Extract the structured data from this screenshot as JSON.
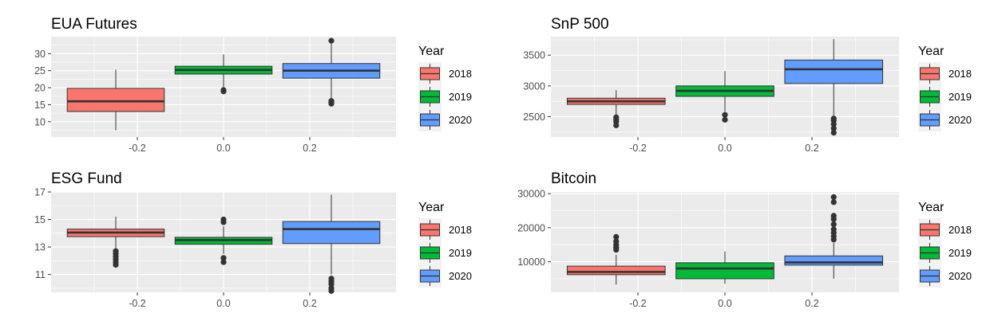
{
  "colors": {
    "2018": "#F8766D",
    "2019": "#00BA38",
    "2020": "#619CFF",
    "panel": "#EBEBEB",
    "grid": "#FFFFFF",
    "median": "#333333"
  },
  "chart_data": [
    {
      "type": "box",
      "title": "EUA Futures",
      "x_ticks": [
        "-0.2",
        "0.0",
        "0.2"
      ],
      "y_ticks": [
        10,
        15,
        20,
        25,
        30
      ],
      "ylim": [
        5.5,
        35
      ],
      "xlim": [
        -0.4,
        0.4
      ],
      "legend": {
        "title": "Year",
        "entries": [
          "2018",
          "2019",
          "2020"
        ],
        "placement": "right"
      },
      "series": [
        {
          "name": "2018",
          "center": -0.25,
          "whisker_low": 7.5,
          "q1": 13,
          "median": 16,
          "q3": 19.8,
          "whisker_high": 25.3,
          "outliers": []
        },
        {
          "name": "2019",
          "center": 0.0,
          "whisker_low": 19.8,
          "q1": 24,
          "median": 25.2,
          "q3": 26.3,
          "whisker_high": 29.8,
          "outliers": [
            18.9,
            19.3
          ]
        },
        {
          "name": "2020",
          "center": 0.25,
          "whisker_low": 16.5,
          "q1": 22.8,
          "median": 25,
          "q3": 27.1,
          "whisker_high": 33,
          "outliers": [
            15.3,
            15.7,
            16.1,
            33.8
          ]
        }
      ]
    },
    {
      "type": "box",
      "title": "SnP 500",
      "x_ticks": [
        "-0.2",
        "0.0",
        "0.2"
      ],
      "y_ticks": [
        2500,
        3000,
        3500
      ],
      "ylim": [
        2170,
        3800
      ],
      "xlim": [
        -0.4,
        0.4
      ],
      "legend": {
        "title": "Year",
        "entries": [
          "2018",
          "2019",
          "2020"
        ],
        "placement": "right"
      },
      "series": [
        {
          "name": "2018",
          "center": -0.25,
          "whisker_low": 2530,
          "q1": 2700,
          "median": 2750,
          "q3": 2800,
          "whisker_high": 2930,
          "outliers": [
            2360,
            2420,
            2460,
            2490
          ]
        },
        {
          "name": "2019",
          "center": 0.0,
          "whisker_low": 2580,
          "q1": 2830,
          "median": 2920,
          "q3": 3000,
          "whisker_high": 3240,
          "outliers": [
            2450,
            2530
          ]
        },
        {
          "name": "2020",
          "center": 0.25,
          "whisker_low": 2500,
          "q1": 3040,
          "median": 3270,
          "q3": 3420,
          "whisker_high": 3760,
          "outliers": [
            2240,
            2310,
            2380,
            2440,
            2470
          ]
        }
      ]
    },
    {
      "type": "box",
      "title": "ESG Fund",
      "x_ticks": [
        "-0.2",
        "0.0",
        "0.2"
      ],
      "y_ticks": [
        11,
        13,
        15,
        17
      ],
      "ylim": [
        9.7,
        17.0
      ],
      "xlim": [
        -0.4,
        0.4
      ],
      "legend": {
        "title": "Year",
        "entries": [
          "2018",
          "2019",
          "2020"
        ],
        "placement": "right"
      },
      "series": [
        {
          "name": "2018",
          "center": -0.25,
          "whisker_low": 12.9,
          "q1": 13.75,
          "median": 14.05,
          "q3": 14.3,
          "whisker_high": 15.2,
          "outliers": [
            11.7,
            11.9,
            12.1,
            12.3,
            12.5,
            12.7
          ]
        },
        {
          "name": "2019",
          "center": 0.0,
          "whisker_low": 12.5,
          "q1": 13.2,
          "median": 13.5,
          "q3": 13.7,
          "whisker_high": 14.5,
          "outliers": [
            11.9,
            12.2,
            14.8,
            15.0
          ]
        },
        {
          "name": "2020",
          "center": 0.25,
          "whisker_low": 11.0,
          "q1": 13.25,
          "median": 14.3,
          "q3": 14.85,
          "whisker_high": 16.8,
          "outliers": [
            9.8,
            10.0,
            10.3,
            10.5,
            10.7
          ]
        }
      ]
    },
    {
      "type": "box",
      "title": "Bitcoin",
      "x_ticks": [
        "-0.2",
        "0.0",
        "0.2"
      ],
      "y_ticks": [
        10000,
        20000,
        30000
      ],
      "ylim": [
        1000,
        30500
      ],
      "xlim": [
        -0.4,
        0.4
      ],
      "legend": {
        "title": "Year",
        "entries": [
          "2018",
          "2019",
          "2020"
        ],
        "placement": "right"
      },
      "series": [
        {
          "name": "2018",
          "center": -0.25,
          "whisker_low": 3300,
          "q1": 6200,
          "median": 7000,
          "q3": 8700,
          "whisker_high": 12000,
          "outliers": [
            13500,
            14200,
            15000,
            16000,
            17300
          ]
        },
        {
          "name": "2019",
          "center": 0.0,
          "whisker_low": 3500,
          "q1": 5000,
          "median": 8000,
          "q3": 9700,
          "whisker_high": 13000,
          "outliers": []
        },
        {
          "name": "2020",
          "center": 0.25,
          "whisker_low": 5000,
          "q1": 9000,
          "median": 9800,
          "q3": 11700,
          "whisker_high": 15500,
          "outliers": [
            16500,
            17500,
            18500,
            19500,
            21000,
            22500,
            23500,
            27500,
            29000
          ]
        }
      ]
    }
  ]
}
